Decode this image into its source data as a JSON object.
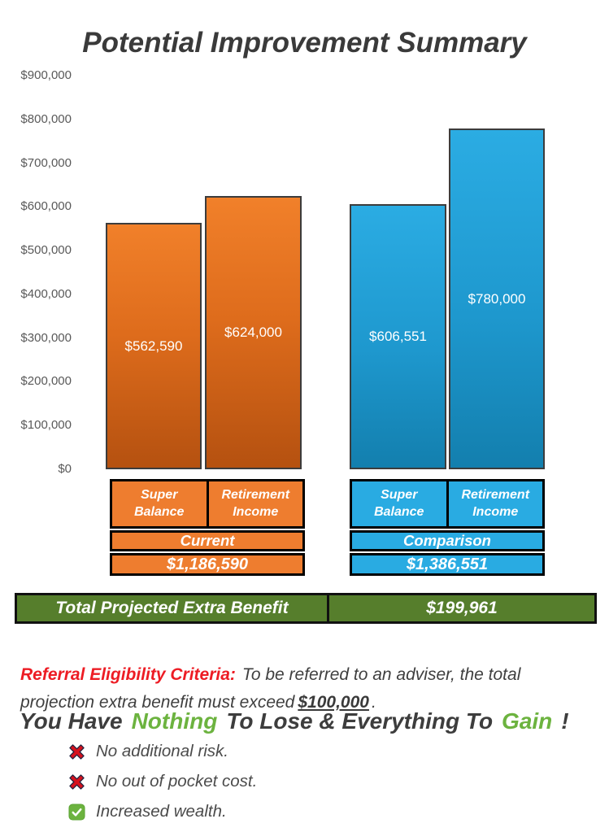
{
  "title": "Potential Improvement Summary",
  "colors": {
    "orange_top": "#F1802A",
    "orange_bottom": "#B55110",
    "orange_flat": "#EE7D2F",
    "blue_top": "#2BACE3",
    "blue_bottom": "#137FAE",
    "blue_flat": "#29ABE2",
    "green_bar": "#567E2C",
    "green_text": "#6CB33F",
    "red_text": "#ED1C24",
    "dark_text": "#3A3A3A",
    "axis_text": "#595959"
  },
  "chart_data": {
    "type": "bar",
    "title": "Potential Improvement Summary",
    "xlabel": "",
    "ylabel": "",
    "ylim": [
      0,
      900000
    ],
    "ytick_step": 100000,
    "ytick_labels": [
      "$900,000",
      "$800,000",
      "$700,000",
      "$600,000",
      "$500,000",
      "$400,000",
      "$300,000",
      "$200,000",
      "$100,000",
      "$0"
    ],
    "grid": false,
    "legend": "none",
    "categories": [
      "Super Balance",
      "Retirement Income"
    ],
    "groups": [
      {
        "name": "Current",
        "theme": "orange",
        "total_label": "$1,186,590",
        "bars": [
          {
            "category": "Super Balance",
            "value": 562590,
            "label": "$562,590"
          },
          {
            "category": "Retirement Income",
            "value": 624000,
            "label": "$624,000"
          }
        ]
      },
      {
        "name": "Comparison",
        "theme": "blue",
        "total_label": "$1,386,551",
        "bars": [
          {
            "category": "Super Balance",
            "value": 606551,
            "label": "$606,551"
          },
          {
            "category": "Retirement Income",
            "value": 780000,
            "label": "$780,000"
          }
        ]
      }
    ]
  },
  "summary_bar": {
    "label": "Total Projected Extra Benefit",
    "value": "$199,961"
  },
  "referral": {
    "lead": "Referral Eligibility Criteria:",
    "body_line1": "To be referred to an adviser, the total",
    "body_line2": "projection extra benefit must exceed",
    "threshold": "$100,000",
    "period": "."
  },
  "headline": {
    "part1": "You Have",
    "green1": "Nothing",
    "part2": "To Lose & Everything To",
    "green2": "Gain",
    "part3": "!"
  },
  "bullets": [
    {
      "icon": "red-x",
      "text": "No additional risk."
    },
    {
      "icon": "red-x",
      "text": "No out of pocket cost."
    },
    {
      "icon": "green-check",
      "text": "Increased wealth."
    }
  ]
}
